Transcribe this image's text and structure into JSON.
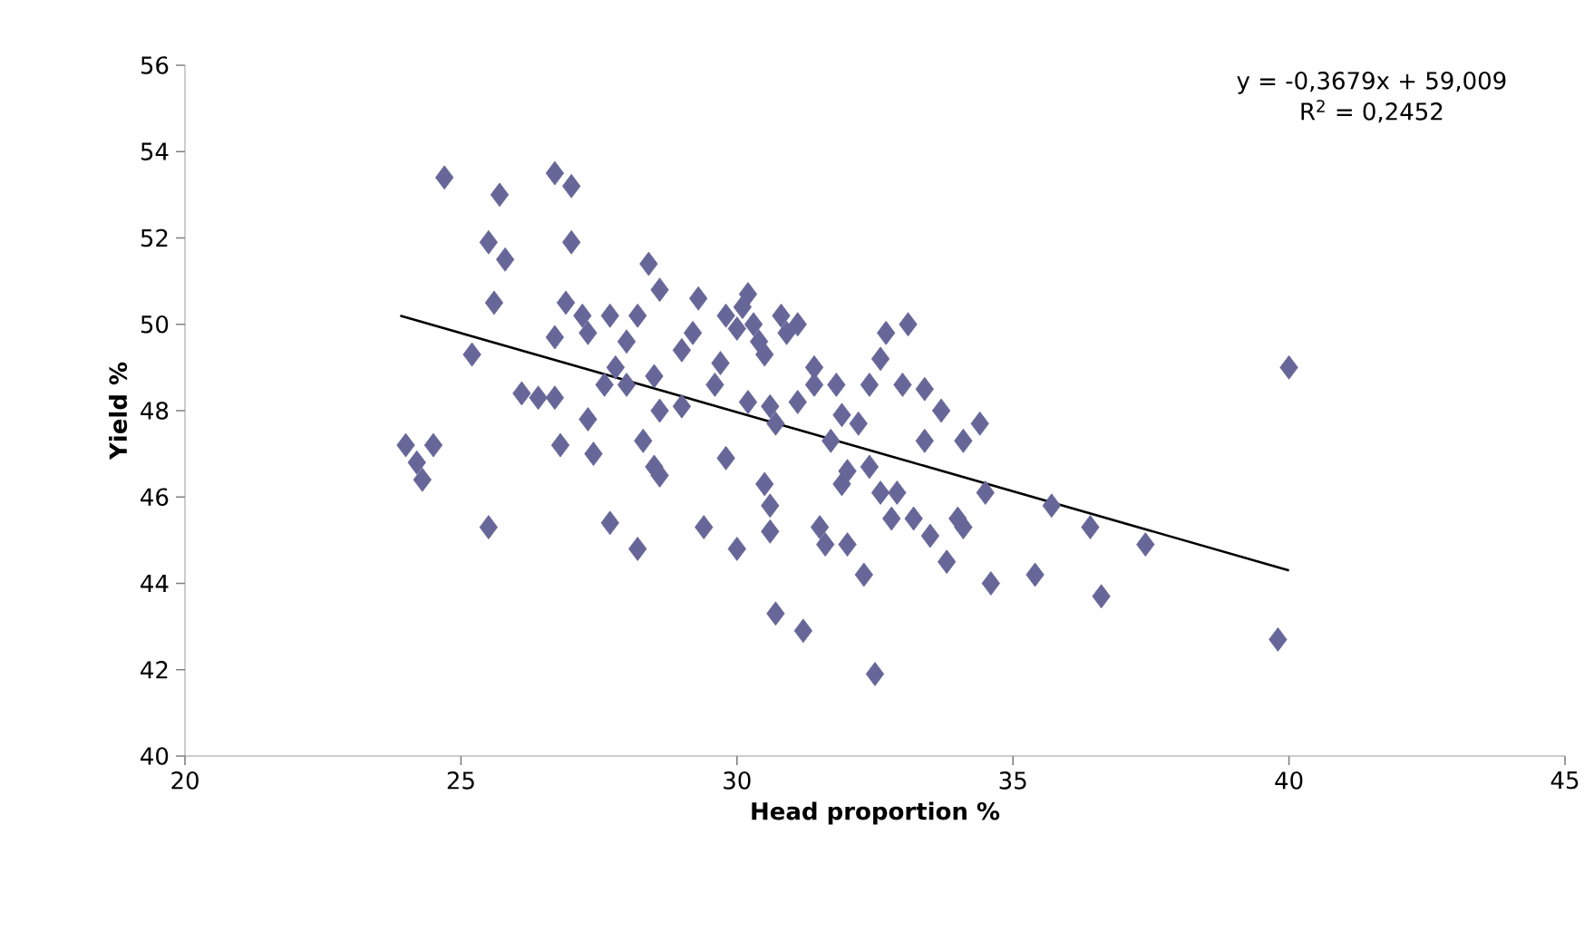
{
  "chart_data": {
    "type": "scatter",
    "xlabel": "Head proportion %",
    "ylabel": "Yield %",
    "xlim": [
      20,
      45
    ],
    "xticks": [
      20,
      25,
      30,
      35,
      40,
      45
    ],
    "ylim": [
      40,
      56
    ],
    "yticks": [
      40,
      42,
      44,
      46,
      48,
      50,
      52,
      54,
      56
    ],
    "annotations": [
      "y = -0,3679x + 59,009",
      "R$^{2}$ = 0,2452"
    ],
    "series": [
      {
        "color": "#666699",
        "marker": "diamond",
        "x": [
          24.0,
          24.2,
          24.3,
          24.5,
          24.7,
          25.2,
          25.5,
          25.5,
          25.6,
          25.7,
          25.8,
          26.1,
          26.4,
          26.7,
          26.7,
          26.8,
          26.7,
          27.0,
          27.0,
          26.9,
          27.2,
          27.3,
          27.3,
          27.4,
          27.6,
          27.7,
          27.7,
          27.8,
          28.0,
          28.0,
          28.2,
          28.2,
          28.3,
          28.4,
          28.5,
          28.5,
          28.6,
          28.6,
          28.6,
          29.0,
          29.0,
          29.2,
          29.3,
          29.4,
          29.6,
          29.7,
          29.8,
          29.8,
          30.0,
          30.0,
          30.1,
          30.2,
          30.2,
          30.3,
          30.4,
          30.5,
          30.5,
          30.6,
          30.6,
          30.7,
          30.6,
          30.7,
          30.8,
          30.9,
          31.1,
          31.1,
          31.2,
          31.4,
          31.4,
          31.5,
          31.6,
          31.7,
          31.8,
          31.9,
          31.9,
          32.0,
          32.2,
          32.0,
          32.3,
          32.4,
          32.4,
          32.5,
          32.6,
          32.6,
          32.7,
          32.8,
          32.9,
          33.0,
          33.1,
          33.2,
          33.4,
          33.4,
          33.5,
          33.7,
          33.8,
          34.0,
          34.1,
          34.1,
          34.4,
          34.5,
          34.6,
          35.4,
          35.7,
          36.4,
          36.6,
          37.4,
          39.8,
          40.0
        ],
        "values": [
          47.2,
          46.8,
          46.4,
          47.2,
          53.4,
          49.3,
          45.3,
          51.9,
          50.5,
          53.0,
          51.5,
          48.4,
          48.3,
          48.3,
          49.7,
          47.2,
          53.5,
          53.2,
          51.9,
          50.5,
          50.2,
          49.8,
          47.8,
          47.0,
          48.6,
          45.4,
          50.2,
          49.0,
          49.6,
          48.6,
          44.8,
          50.2,
          47.3,
          51.4,
          48.8,
          46.7,
          46.5,
          50.8,
          48.0,
          48.1,
          49.4,
          49.8,
          50.6,
          45.3,
          48.6,
          49.1,
          46.9,
          50.2,
          44.8,
          49.9,
          50.4,
          50.7,
          48.2,
          50.0,
          49.6,
          49.3,
          46.3,
          45.8,
          45.2,
          43.3,
          48.1,
          47.7,
          50.2,
          49.8,
          50.0,
          48.2,
          42.9,
          48.6,
          49.0,
          45.3,
          44.9,
          47.3,
          48.6,
          46.3,
          47.9,
          44.9,
          47.7,
          46.6,
          44.2,
          48.6,
          46.7,
          41.9,
          49.2,
          46.1,
          49.8,
          45.5,
          46.1,
          48.6,
          50.0,
          45.5,
          48.5,
          47.3,
          45.1,
          48.0,
          44.5,
          45.5,
          47.3,
          45.3,
          47.7,
          46.1,
          44.0,
          44.2,
          45.8,
          45.3,
          43.7,
          44.9,
          42.7,
          49.0
        ]
      },
      {
        "type": "line",
        "marker": "none",
        "color": "#000000",
        "x": [
          23.9,
          40.0
        ],
        "values": [
          50.2,
          44.3
        ]
      }
    ]
  }
}
